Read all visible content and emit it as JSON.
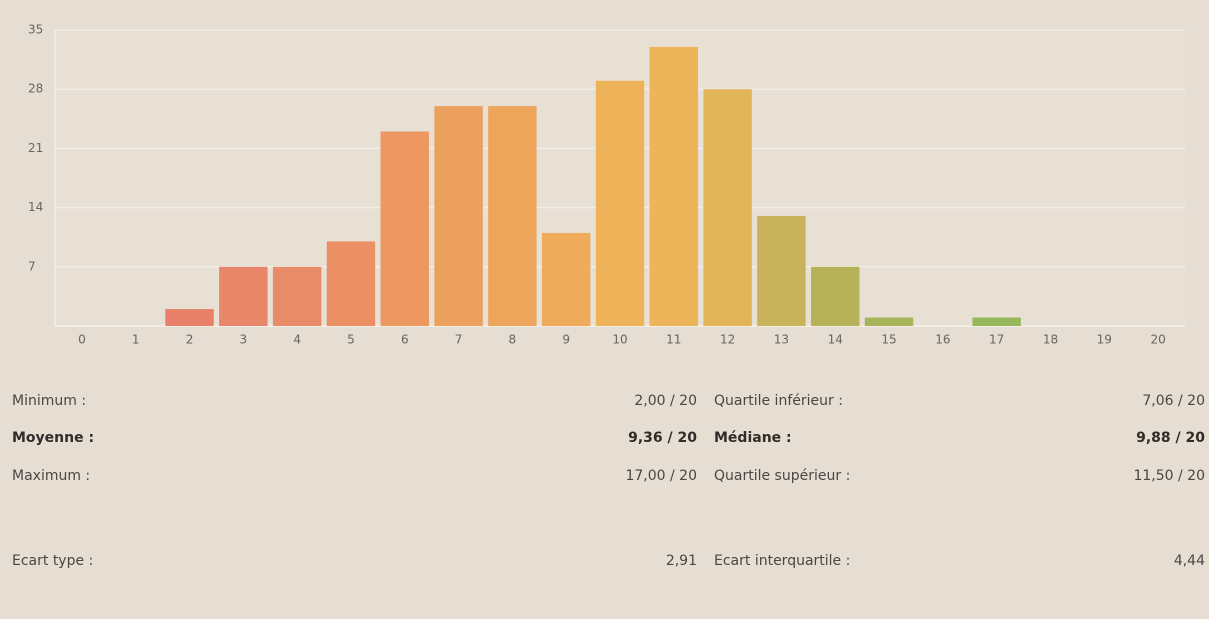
{
  "chart_data": {
    "type": "bar",
    "categories": [
      "0",
      "1",
      "2",
      "3",
      "4",
      "5",
      "6",
      "7",
      "8",
      "9",
      "10",
      "11",
      "12",
      "13",
      "14",
      "15",
      "16",
      "17",
      "18",
      "19",
      "20"
    ],
    "values": [
      0,
      0,
      2,
      7,
      7,
      10,
      23,
      26,
      26,
      11,
      29,
      33,
      28,
      13,
      7,
      1,
      0,
      1,
      0,
      0,
      0
    ],
    "colors": [
      "#e87e6c",
      "#e87e6c",
      "#e8806a",
      "#e8866a",
      "#e98a68",
      "#eb9064",
      "#ec9860",
      "#eca05e",
      "#eda55c",
      "#eeab5a",
      "#eeb259",
      "#ecb55a",
      "#e3b55a",
      "#c8b35a",
      "#b5b25a",
      "#a6b45a",
      "#9fb65a",
      "#95b85a",
      "#90b85a",
      "#8cb85a",
      "#88b85a"
    ],
    "ylim": [
      0,
      35
    ],
    "yticks": [
      7,
      14,
      21,
      28,
      35
    ],
    "grid": true
  },
  "stats": {
    "rows": [
      [
        "Minimum :",
        "2,00 / 20",
        "Quartile inférieur :",
        "7,06 / 20"
      ],
      [
        "Moyenne :",
        "9,36 / 20",
        "Médiane :",
        "9,88 / 20"
      ],
      [
        "Maximum :",
        "17,00 / 20",
        "Quartile supérieur :",
        "11,50 / 20"
      ],
      [
        "Ecart type :",
        "2,91",
        "Ecart interquartile :",
        "4,44"
      ]
    ]
  }
}
